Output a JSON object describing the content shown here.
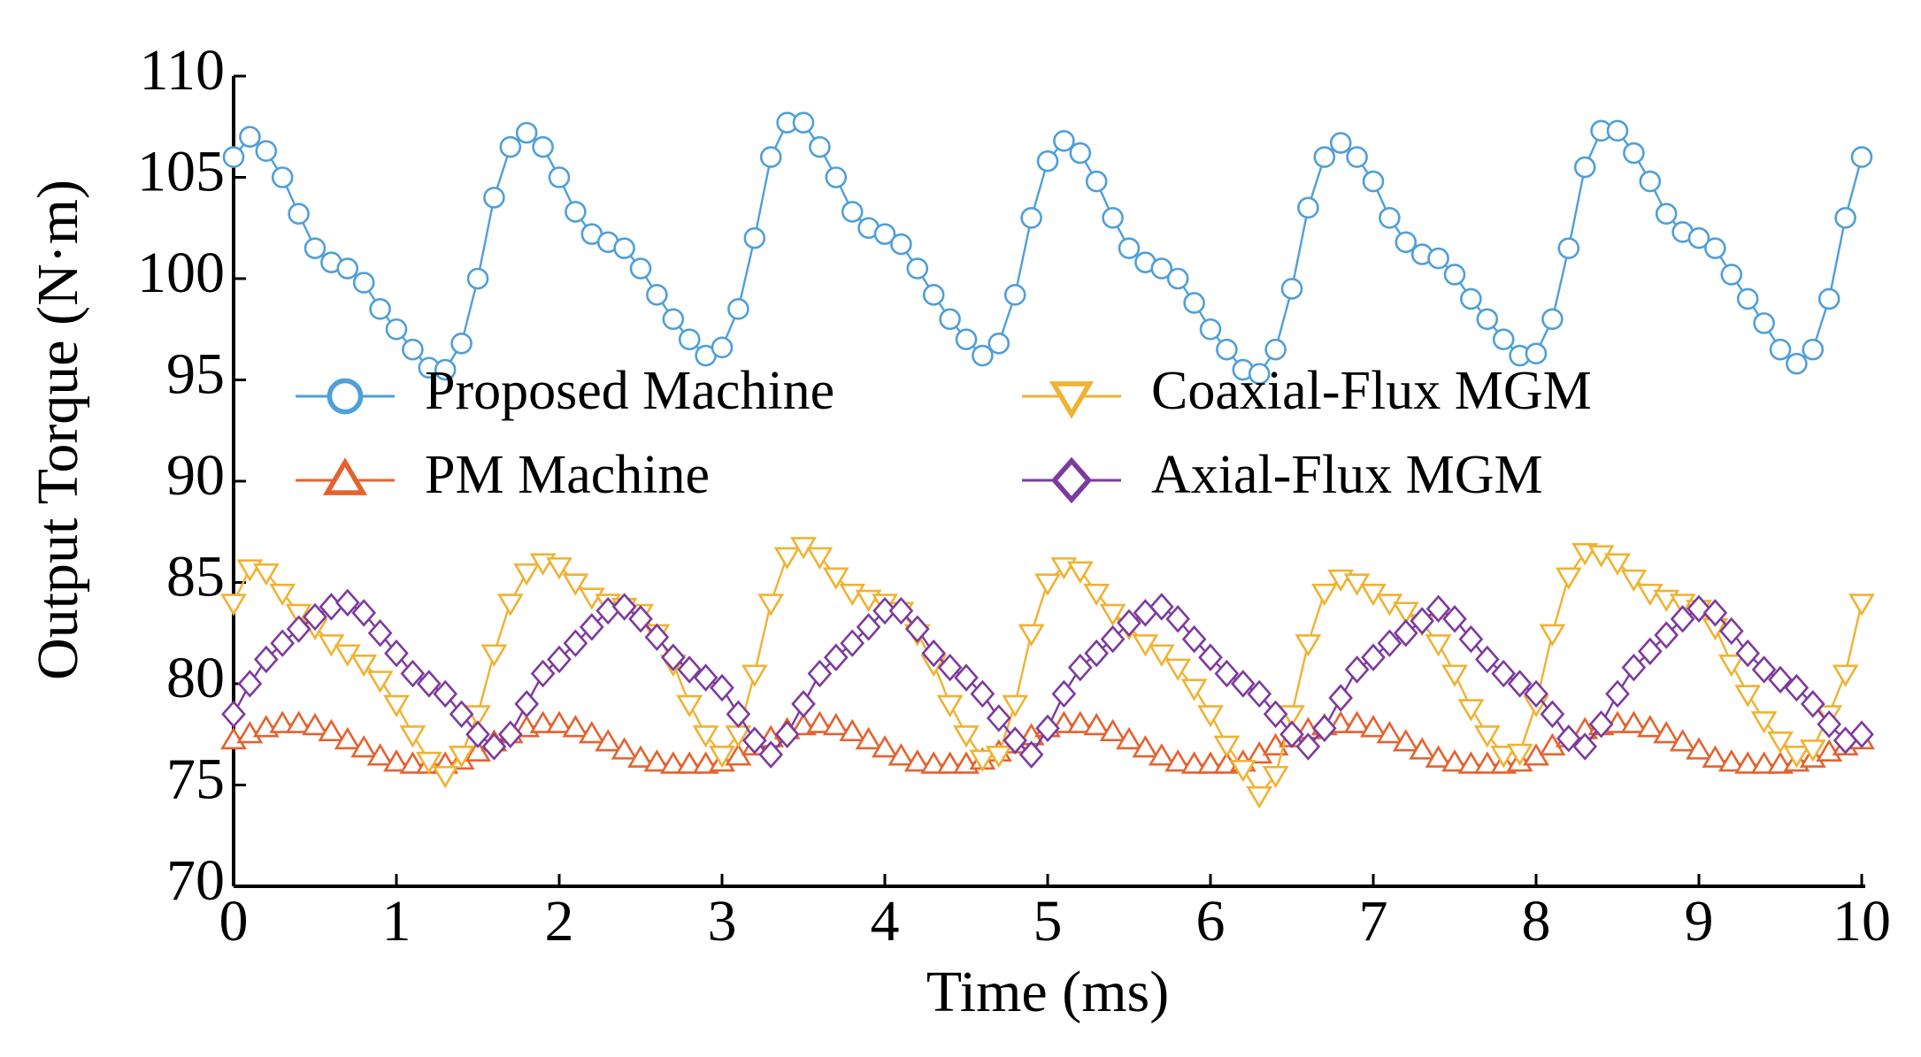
{
  "chart_data": {
    "type": "line",
    "x_label": "Time (ms)",
    "y_label": "Output Torque (N·m)",
    "xlim": [
      0,
      10
    ],
    "ylim": [
      70,
      110
    ],
    "xticks": [
      0,
      1,
      2,
      3,
      4,
      5,
      6,
      7,
      8,
      9,
      10
    ],
    "yticks": [
      70,
      75,
      80,
      85,
      90,
      95,
      100,
      105,
      110
    ],
    "x": [
      0,
      0.1,
      0.2,
      0.3,
      0.4,
      0.5,
      0.6,
      0.7,
      0.8,
      0.9,
      1,
      1.1,
      1.2,
      1.3,
      1.4,
      1.5,
      1.6,
      1.7,
      1.8,
      1.9,
      2,
      2.1,
      2.2,
      2.3,
      2.4,
      2.5,
      2.6,
      2.7,
      2.8,
      2.9,
      3,
      3.1,
      3.2,
      3.3,
      3.4,
      3.5,
      3.6,
      3.7,
      3.8,
      3.9,
      4,
      4.1,
      4.2,
      4.3,
      4.4,
      4.5,
      4.6,
      4.7,
      4.8,
      4.9,
      5,
      5.1,
      5.2,
      5.3,
      5.4,
      5.5,
      5.6,
      5.7,
      5.8,
      5.9,
      6,
      6.1,
      6.2,
      6.3,
      6.4,
      6.5,
      6.6,
      6.7,
      6.8,
      6.9,
      7,
      7.1,
      7.2,
      7.3,
      7.4,
      7.5,
      7.6,
      7.7,
      7.8,
      7.9,
      8,
      8.1,
      8.2,
      8.3,
      8.4,
      8.5,
      8.6,
      8.7,
      8.8,
      8.9,
      9,
      9.1,
      9.2,
      9.3,
      9.4,
      9.5,
      9.6,
      9.7,
      9.8,
      9.9,
      10
    ],
    "series": [
      {
        "name": "Proposed Machine",
        "color": "#4f9fd9",
        "marker": "circle",
        "values": [
          106,
          107,
          106.3,
          105,
          103.2,
          101.5,
          100.8,
          100.5,
          99.8,
          98.5,
          97.5,
          96.5,
          95.6,
          95.5,
          96.8,
          100,
          104,
          106.5,
          107.2,
          106.5,
          105,
          103.3,
          102.2,
          101.8,
          101.5,
          100.5,
          99.2,
          98,
          97,
          96.2,
          96.6,
          98.5,
          102,
          106,
          107.7,
          107.7,
          106.5,
          105,
          103.3,
          102.5,
          102.2,
          101.7,
          100.5,
          99.2,
          98,
          97,
          96.2,
          96.8,
          99.2,
          103,
          105.8,
          106.8,
          106.2,
          104.8,
          103,
          101.5,
          100.8,
          100.5,
          100,
          98.8,
          97.5,
          96.5,
          95.5,
          95.3,
          96.5,
          99.5,
          103.5,
          106,
          106.7,
          106,
          104.8,
          103,
          101.8,
          101.2,
          101,
          100.2,
          99,
          98,
          97,
          96.2,
          96.3,
          98,
          101.5,
          105.5,
          107.3,
          107.3,
          106.2,
          104.8,
          103.2,
          102.3,
          102,
          101.5,
          100.2,
          99,
          97.8,
          96.5,
          95.8,
          96.5,
          99,
          103,
          106
        ]
      },
      {
        "name": "PM Machine",
        "color": "#e5622f",
        "marker": "triangle-up",
        "values": [
          77.2,
          77.5,
          77.8,
          78,
          78,
          77.9,
          77.6,
          77.2,
          76.8,
          76.4,
          76.1,
          76,
          76,
          76,
          76.2,
          76.6,
          77.1,
          77.5,
          77.8,
          78,
          78,
          77.8,
          77.5,
          77.1,
          76.7,
          76.3,
          76.1,
          76,
          76,
          76,
          76.1,
          76.4,
          76.9,
          77.3,
          77.7,
          77.9,
          78,
          77.9,
          77.6,
          77.2,
          76.8,
          76.4,
          76.1,
          76,
          76,
          76,
          76.2,
          76.6,
          77,
          77.4,
          77.8,
          78,
          78,
          77.9,
          77.6,
          77.2,
          76.8,
          76.4,
          76.1,
          76,
          76,
          76,
          76.1,
          76.5,
          76.9,
          77.3,
          77.7,
          77.9,
          78,
          78,
          77.8,
          77.5,
          77.1,
          76.7,
          76.3,
          76.1,
          76,
          76,
          76,
          76.1,
          76.4,
          76.9,
          77.3,
          77.7,
          77.9,
          78,
          78,
          77.8,
          77.5,
          77.1,
          76.7,
          76.3,
          76.1,
          76,
          76,
          76,
          76.1,
          76.3,
          76.6,
          76.9,
          77.2
        ]
      },
      {
        "name": "Coaxial-Flux MGM",
        "color": "#f0b232",
        "marker": "triangle-down",
        "values": [
          84,
          85.7,
          85.5,
          84.5,
          83.5,
          82.8,
          82,
          81.5,
          81,
          80.2,
          79,
          77.5,
          76.2,
          75.5,
          76.5,
          78.5,
          81.5,
          84,
          85.5,
          86,
          85.8,
          85,
          84.3,
          84,
          83.8,
          83.5,
          82.5,
          81,
          79,
          77.5,
          76.5,
          77.5,
          80.5,
          84,
          86.3,
          86.8,
          86.3,
          85.3,
          84.5,
          84.2,
          84,
          83.6,
          82.5,
          81,
          79,
          77.5,
          76.3,
          76.5,
          79,
          82.5,
          85,
          85.8,
          85.6,
          84.5,
          83.5,
          82.8,
          82,
          81.5,
          80.8,
          79.8,
          78.5,
          77,
          75.8,
          74.5,
          75.5,
          78.5,
          82,
          84.5,
          85.2,
          85,
          84.5,
          84,
          83.6,
          83,
          82,
          80.5,
          78.8,
          77.5,
          76.5,
          76.6,
          79,
          82.5,
          85.3,
          86.5,
          86.4,
          86,
          85.2,
          84.5,
          84.2,
          84,
          83.7,
          82.8,
          81,
          79.5,
          78.2,
          77.2,
          76.5,
          76.8,
          78.5,
          80.5,
          84
        ]
      },
      {
        "name": "Axial-Flux MGM",
        "color": "#7d3a9e",
        "marker": "diamond",
        "values": [
          78.5,
          80,
          81.2,
          82,
          82.7,
          83.3,
          83.8,
          84,
          83.5,
          82.5,
          81.5,
          80.5,
          80,
          79.5,
          78.5,
          77.5,
          76.9,
          77.5,
          79,
          80.5,
          81.2,
          82,
          82.8,
          83.6,
          83.8,
          83.2,
          82.3,
          81.3,
          80.7,
          80.3,
          79.8,
          78.5,
          77.2,
          76.5,
          77.5,
          79,
          80.5,
          81.3,
          82,
          82.8,
          83.6,
          83.6,
          82.7,
          81.5,
          80.8,
          80.3,
          79.5,
          78.3,
          77.2,
          76.5,
          77.8,
          79.5,
          80.8,
          81.5,
          82.2,
          83,
          83.5,
          83.8,
          83.2,
          82.2,
          81.3,
          80.5,
          80,
          79.5,
          78.5,
          77.5,
          76.9,
          77.8,
          79.3,
          80.7,
          81.3,
          82,
          82.5,
          83.1,
          83.7,
          83.2,
          82.2,
          81.2,
          80.5,
          80,
          79.5,
          78.5,
          77.3,
          76.9,
          78,
          79.5,
          80.8,
          81.6,
          82.4,
          83.2,
          83.7,
          83.5,
          82.6,
          81.5,
          80.7,
          80.2,
          79.8,
          79,
          78,
          77.2,
          77.5
        ]
      }
    ]
  }
}
